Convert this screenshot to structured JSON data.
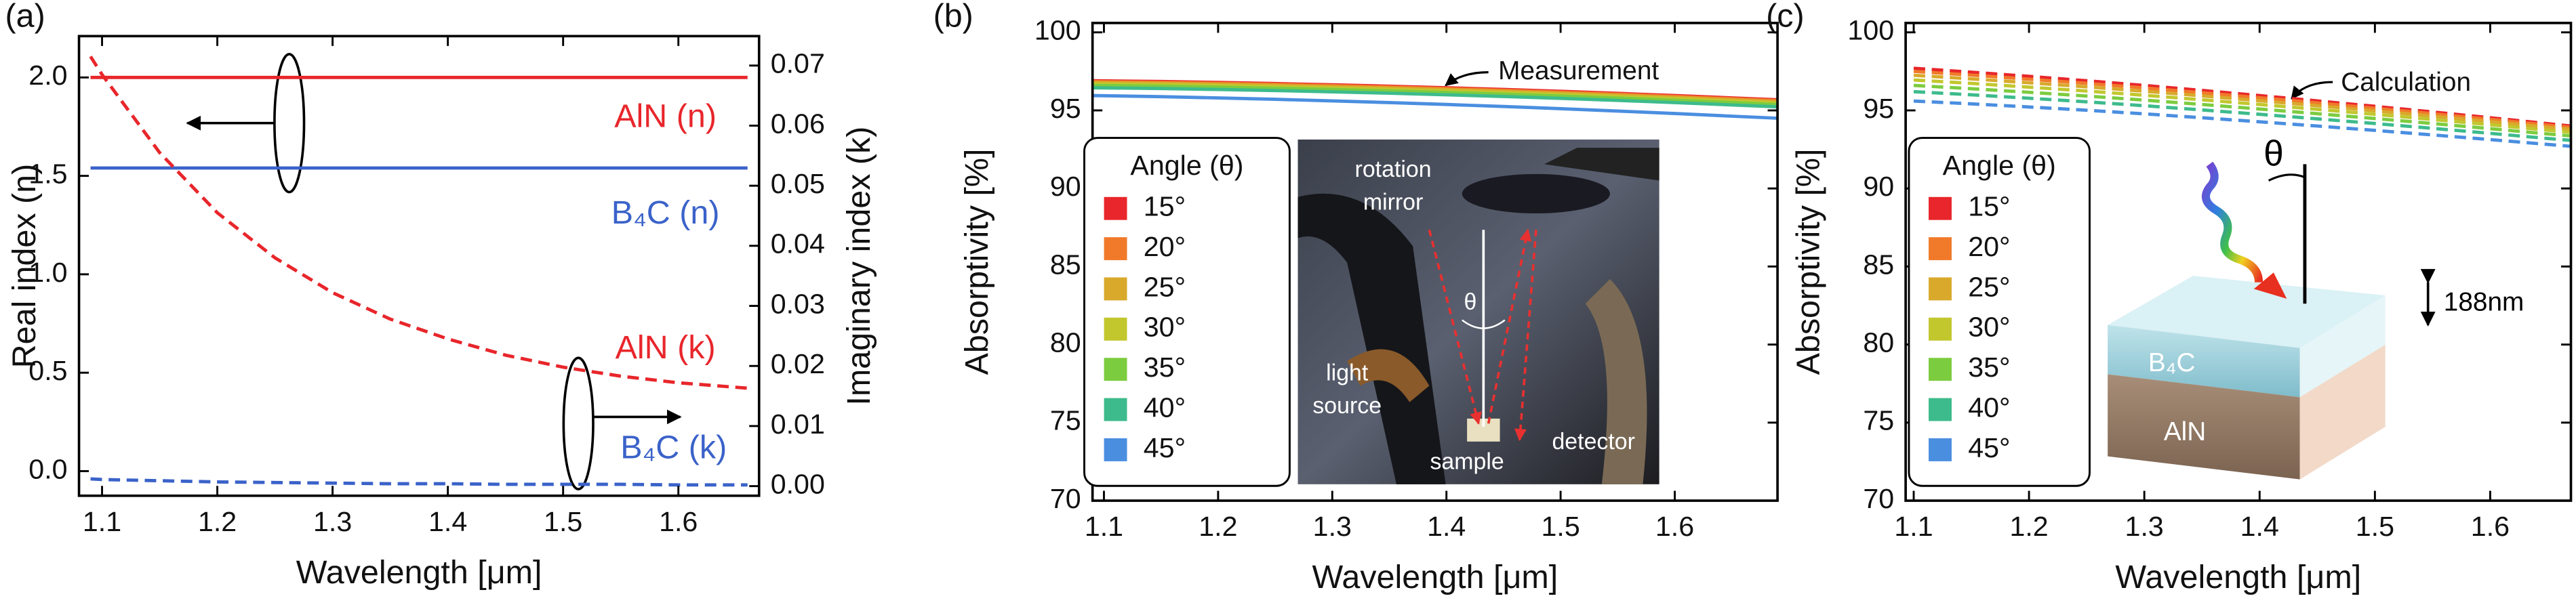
{
  "chart_data": [
    {
      "type": "line",
      "panel_label": "(a)",
      "x": [
        1.09,
        1.1,
        1.15,
        1.2,
        1.25,
        1.3,
        1.35,
        1.4,
        1.45,
        1.5,
        1.55,
        1.6,
        1.66
      ],
      "xlim": [
        1.08,
        1.67
      ],
      "xticks": [
        1.1,
        1.2,
        1.3,
        1.4,
        1.5,
        1.6
      ],
      "ylim": [
        -0.125,
        2.21
      ],
      "yticks": [
        {
          "value": 0,
          "label": "0.0"
        },
        0.5,
        {
          "value": 1,
          "label": "1.0"
        },
        1.5,
        {
          "value": 2,
          "label": "2.0"
        }
      ],
      "y2lim": [
        -0.0016,
        0.0749
      ],
      "y2ticks": [
        {
          "value": 0,
          "label": "0.00"
        },
        0.01,
        0.02,
        0.03,
        0.04,
        0.05,
        0.06,
        0.07
      ],
      "xlabel": "Wavelength [μm]",
      "ylabel": "Real index (n)",
      "y2label": "Imaginary index (k)",
      "series": [
        {
          "name": "AlN (n)",
          "color": "#e8262b",
          "style": "solid",
          "values": [
            2.0,
            2.0,
            2.0,
            2.0,
            2.0,
            2.0,
            2.0,
            2.0,
            2.0,
            2.0,
            2.0,
            2.0,
            2.0
          ]
        },
        {
          "name": "B₄C (n)",
          "color": "#3a62c9",
          "style": "solid",
          "values": [
            1.54,
            1.54,
            1.54,
            1.54,
            1.54,
            1.54,
            1.54,
            1.54,
            1.54,
            1.54,
            1.54,
            1.54,
            1.54
          ]
        },
        {
          "name": "AlN (k)",
          "color": "#e8262b",
          "style": "dashed",
          "axis": "y2",
          "values": [
            0.0715,
            0.0685,
            0.0555,
            0.0455,
            0.038,
            0.0322,
            0.0278,
            0.0245,
            0.0218,
            0.0198,
            0.0183,
            0.0172,
            0.0163
          ]
        },
        {
          "name": "B₄C (k)",
          "color": "#3a62c9",
          "style": "dashed",
          "axis": "y2",
          "values": [
            0.0012,
            0.0011,
            0.0009,
            0.0007,
            0.0006,
            0.0005,
            0.0004,
            0.0004,
            0.0003,
            0.0003,
            0.0003,
            0.0002,
            0.0002
          ]
        }
      ]
    },
    {
      "type": "line",
      "panel_label": "(b)",
      "x": [
        1.09,
        1.15,
        1.2,
        1.25,
        1.3,
        1.35,
        1.4,
        1.45,
        1.5,
        1.55,
        1.6,
        1.65,
        1.69
      ],
      "xlim": [
        1.09,
        1.69
      ],
      "xticks": [
        1.1,
        1.2,
        1.3,
        1.4,
        1.5,
        1.6
      ],
      "ylim": [
        70,
        100.6
      ],
      "yticks": [
        70,
        75,
        80,
        85,
        90,
        95,
        100
      ],
      "xlabel": "Wavelength [μm]",
      "ylabel": "Absorptivity [%]",
      "annotation": "Measurement",
      "legend_title": "Angle (θ)",
      "inset_labels": [
        "rotation",
        "mirror",
        "θ",
        "light",
        "source",
        "sample",
        "detector"
      ],
      "series": [
        {
          "name": "15°",
          "color": "#e8262b",
          "style": "solid",
          "values": [
            96.9,
            96.85,
            96.79,
            96.72,
            96.64,
            96.55,
            96.45,
            96.34,
            96.22,
            96.09,
            95.95,
            95.8,
            95.68
          ]
        },
        {
          "name": "20°",
          "color": "#f07a2a",
          "style": "solid",
          "values": [
            96.85,
            96.8,
            96.74,
            96.67,
            96.59,
            96.5,
            96.4,
            96.29,
            96.17,
            96.04,
            95.9,
            95.75,
            95.63
          ]
        },
        {
          "name": "25°",
          "color": "#d9a92b",
          "style": "solid",
          "values": [
            96.78,
            96.73,
            96.67,
            96.6,
            96.52,
            96.43,
            96.33,
            96.22,
            96.1,
            95.97,
            95.83,
            95.68,
            95.56
          ]
        },
        {
          "name": "30°",
          "color": "#c2c72e",
          "style": "solid",
          "values": [
            96.7,
            96.65,
            96.59,
            96.52,
            96.44,
            96.35,
            96.25,
            96.14,
            96.02,
            95.89,
            95.75,
            95.6,
            95.48
          ]
        },
        {
          "name": "35°",
          "color": "#7ccc3f",
          "style": "solid",
          "values": [
            96.6,
            96.55,
            96.49,
            96.42,
            96.34,
            96.25,
            96.15,
            96.04,
            95.92,
            95.79,
            95.65,
            95.5,
            95.38
          ]
        },
        {
          "name": "40°",
          "color": "#3dbb8c",
          "style": "solid",
          "values": [
            96.45,
            96.4,
            96.34,
            96.27,
            96.19,
            96.1,
            96.0,
            95.89,
            95.77,
            95.64,
            95.5,
            95.35,
            95.23
          ]
        },
        {
          "name": "45°",
          "color": "#4a8ee0",
          "style": "solid",
          "values": [
            95.95,
            95.88,
            95.8,
            95.71,
            95.61,
            95.5,
            95.38,
            95.25,
            95.11,
            94.96,
            94.8,
            94.63,
            94.5
          ]
        }
      ]
    },
    {
      "type": "line",
      "panel_label": "(c)",
      "x": [
        1.1,
        1.15,
        1.2,
        1.25,
        1.3,
        1.35,
        1.4,
        1.45,
        1.5,
        1.55,
        1.6,
        1.65,
        1.67
      ],
      "xlim": [
        1.093,
        1.67
      ],
      "xticks": [
        1.1,
        1.2,
        1.3,
        1.4,
        1.5,
        1.6
      ],
      "ylim": [
        70,
        100.6
      ],
      "yticks": [
        70,
        75,
        80,
        85,
        90,
        95,
        100
      ],
      "xlabel": "Wavelength [μm]",
      "ylabel": "Absorptivity [%]",
      "annotation": "Calculation",
      "legend_title": "Angle (θ)",
      "inset_labels": [
        "θ",
        "188nm",
        "B₄C",
        "AlN"
      ],
      "series": [
        {
          "name": "15°",
          "color": "#e8262b",
          "style": "dashed",
          "values": [
            97.7,
            97.45,
            97.18,
            96.9,
            96.6,
            96.28,
            95.95,
            95.61,
            95.26,
            94.9,
            94.53,
            94.15,
            94.0
          ]
        },
        {
          "name": "20°",
          "color": "#f07a2a",
          "style": "dashed",
          "values": [
            97.5,
            97.26,
            97.0,
            96.73,
            96.44,
            96.13,
            95.81,
            95.48,
            95.14,
            94.79,
            94.43,
            94.06,
            93.91
          ]
        },
        {
          "name": "25°",
          "color": "#d9a92b",
          "style": "dashed",
          "values": [
            97.25,
            97.02,
            96.77,
            96.51,
            96.23,
            95.93,
            95.62,
            95.3,
            94.97,
            94.63,
            94.28,
            93.92,
            93.78
          ]
        },
        {
          "name": "30°",
          "color": "#c2c72e",
          "style": "dashed",
          "values": [
            96.95,
            96.73,
            96.49,
            96.24,
            95.97,
            95.68,
            95.38,
            95.07,
            94.75,
            94.42,
            94.08,
            93.73,
            93.6
          ]
        },
        {
          "name": "35°",
          "color": "#7ccc3f",
          "style": "dashed",
          "values": [
            96.6,
            96.39,
            96.16,
            95.92,
            95.66,
            95.38,
            95.09,
            94.79,
            94.48,
            94.16,
            93.83,
            93.49,
            93.37
          ]
        },
        {
          "name": "40°",
          "color": "#3dbb8c",
          "style": "dashed",
          "values": [
            96.2,
            96.0,
            95.78,
            95.55,
            95.3,
            95.03,
            94.75,
            94.46,
            94.16,
            93.85,
            93.53,
            93.2,
            93.08
          ]
        },
        {
          "name": "45°",
          "color": "#4a8ee0",
          "style": "dashed",
          "values": [
            95.6,
            95.42,
            95.22,
            95.01,
            94.78,
            94.53,
            94.27,
            94.0,
            93.72,
            93.43,
            93.13,
            92.82,
            92.7
          ]
        }
      ]
    }
  ]
}
